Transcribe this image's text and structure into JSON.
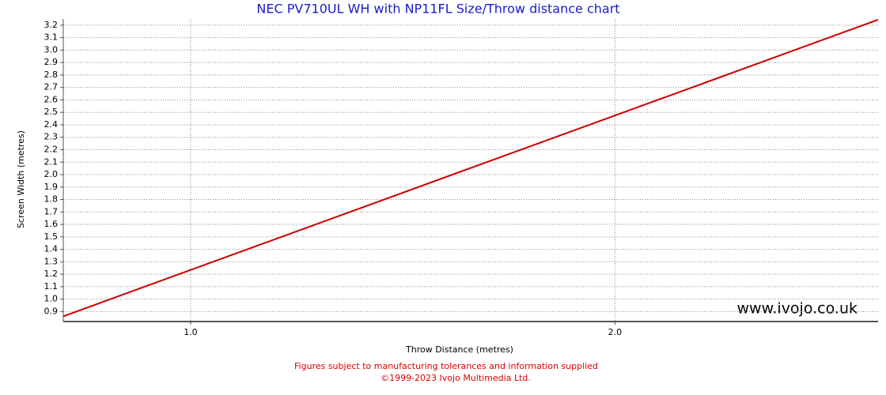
{
  "chart_data": {
    "type": "line",
    "title": "NEC PV710UL WH with NP11FL Size/Throw distance chart",
    "x_label": "Throw Distance (metres)",
    "y_label": "Screen Width (metres)",
    "watermark": "www.ivojo.co.uk",
    "footer": [
      "Figures subject to manufacturing tolerances and information supplied",
      "©1999-2023 Ivojo Multimedia Ltd."
    ],
    "x": [
      0.7,
      2.62
    ],
    "series": [
      {
        "name": "Screen Width",
        "color": "#cc0000",
        "values": [
          0.862,
          3.244
        ]
      }
    ],
    "xlim": [
      0.7,
      2.62
    ],
    "xticks": [
      {
        "value": 1,
        "label": "1.0"
      },
      {
        "value": 2,
        "label": "2.0"
      }
    ],
    "ylim": [
      0.82,
      3.25
    ],
    "yticks": [
      0.9,
      {
        "value": 1,
        "label": "1.0"
      },
      1.1,
      1.2,
      1.3,
      1.4,
      1.5,
      1.6,
      1.7,
      1.8,
      1.9,
      {
        "value": 2,
        "label": "2.0"
      },
      2.1,
      2.2,
      2.3,
      2.4,
      2.5,
      2.6,
      2.7,
      2.8,
      2.9,
      {
        "value": 3,
        "label": "3.0"
      },
      3.1,
      3.2
    ],
    "grid": true
  }
}
